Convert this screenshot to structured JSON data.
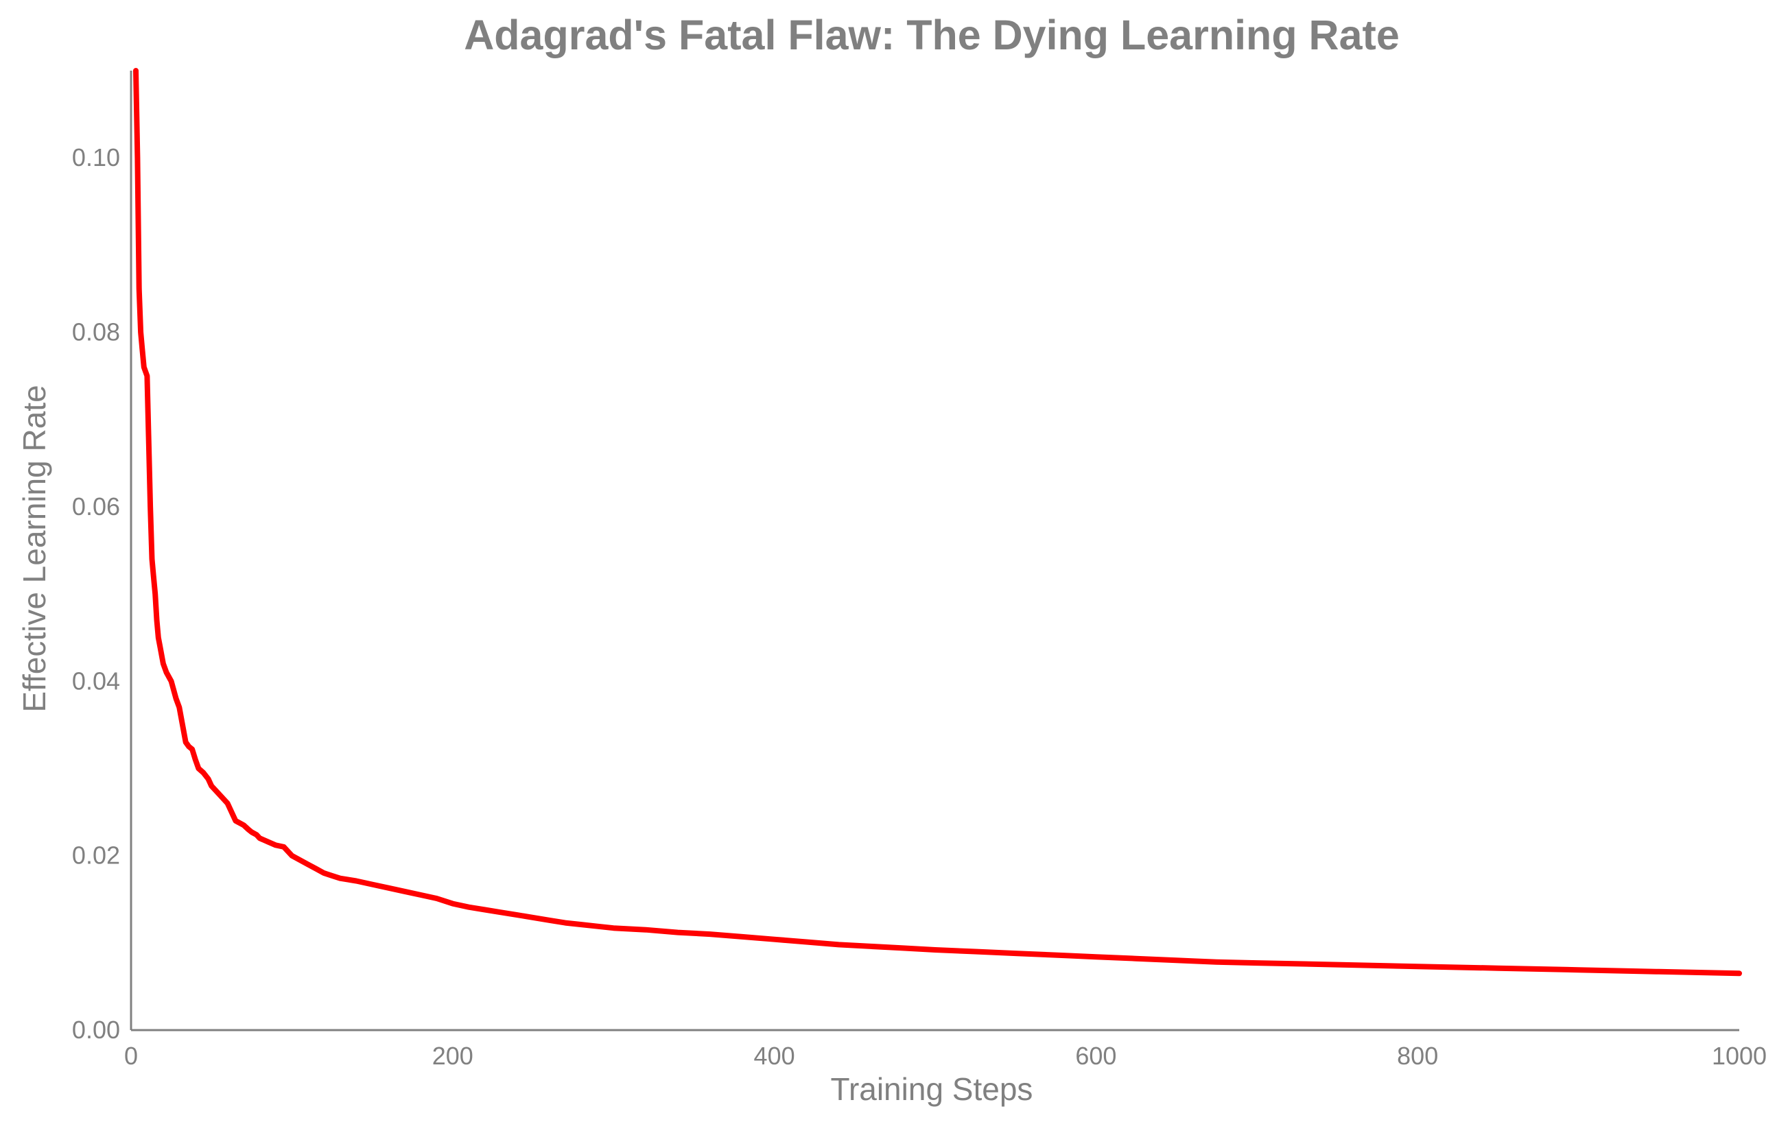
{
  "chart_data": {
    "type": "line",
    "title": "Adagrad's Fatal Flaw: The Dying Learning Rate",
    "xlabel": "Training Steps",
    "ylabel": "Effective Learning Rate",
    "xlim": [
      0,
      1000
    ],
    "ylim": [
      0,
      0.11
    ],
    "xticks": [
      0,
      200,
      400,
      600,
      800,
      1000
    ],
    "xtick_labels": [
      "0",
      "200",
      "400",
      "600",
      "800",
      "1000"
    ],
    "yticks": [
      0.0,
      0.02,
      0.04,
      0.06,
      0.08,
      0.1
    ],
    "ytick_labels": [
      "0.00",
      "0.02",
      "0.04",
      "0.06",
      "0.08",
      "0.10"
    ],
    "grid": false,
    "legend": false,
    "colors": {
      "line": "#ff0000",
      "text": "#808080",
      "axis": "#808080"
    },
    "series": [
      {
        "x": [
          3,
          4,
          5,
          6,
          7,
          8,
          10,
          12,
          13,
          14,
          15,
          16,
          17,
          18,
          20,
          22,
          25,
          28,
          30,
          32,
          34,
          36,
          38,
          40,
          42,
          45,
          48,
          50,
          55,
          60,
          65,
          70,
          73,
          75,
          78,
          80,
          85,
          90,
          95,
          100,
          105,
          110,
          115,
          120,
          125,
          130,
          140,
          150,
          160,
          170,
          180,
          190,
          200,
          210,
          220,
          230,
          240,
          250,
          260,
          270,
          280,
          290,
          300,
          320,
          340,
          360,
          380,
          400,
          420,
          440,
          460,
          480,
          500,
          525,
          550,
          575,
          600,
          625,
          650,
          675,
          700,
          750,
          800,
          850,
          900,
          950,
          1000
        ],
        "y": [
          0.11,
          0.1,
          0.085,
          0.08,
          0.078,
          0.076,
          0.075,
          0.06,
          0.054,
          0.052,
          0.05,
          0.047,
          0.045,
          0.044,
          0.042,
          0.041,
          0.04,
          0.038,
          0.037,
          0.035,
          0.033,
          0.0325,
          0.0322,
          0.031,
          0.03,
          0.0295,
          0.0288,
          0.028,
          0.027,
          0.026,
          0.024,
          0.0235,
          0.023,
          0.0227,
          0.0224,
          0.022,
          0.0216,
          0.0212,
          0.021,
          0.02,
          0.0195,
          0.019,
          0.0185,
          0.018,
          0.0177,
          0.0174,
          0.0171,
          0.0167,
          0.0163,
          0.0159,
          0.0155,
          0.0151,
          0.0145,
          0.0141,
          0.0138,
          0.0135,
          0.0132,
          0.0129,
          0.0126,
          0.0123,
          0.0121,
          0.0119,
          0.0117,
          0.0115,
          0.0112,
          0.011,
          0.0107,
          0.0104,
          0.0101,
          0.0098,
          0.0096,
          0.0094,
          0.0092,
          0.009,
          0.0088,
          0.0086,
          0.0084,
          0.0082,
          0.008,
          0.0078,
          0.0077,
          0.0075,
          0.0073,
          0.0071,
          0.0069,
          0.0067,
          0.0065
        ]
      }
    ]
  }
}
